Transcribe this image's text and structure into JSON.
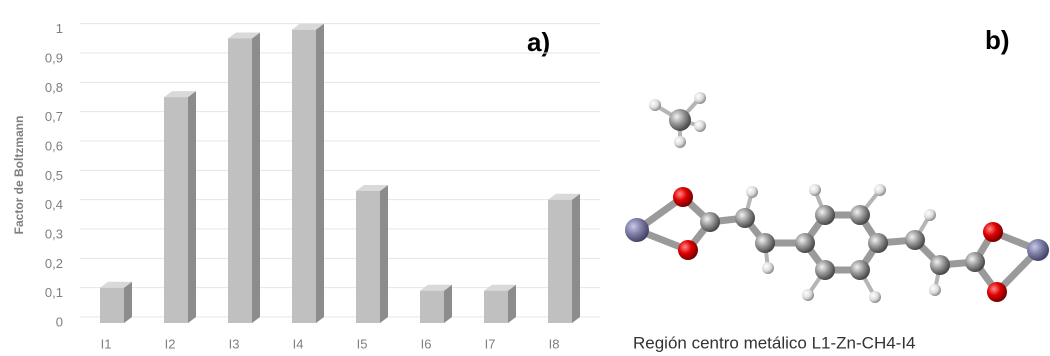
{
  "chart_data": {
    "type": "bar",
    "panel_label": "a)",
    "y_label": "Factor de Boltzmann",
    "categories": [
      "I1",
      "I2",
      "I3",
      "I4",
      "I5",
      "I6",
      "I7",
      "I8"
    ],
    "values": [
      0.12,
      0.77,
      0.97,
      1.0,
      0.45,
      0.11,
      0.11,
      0.42
    ],
    "color": "#c0c0c0",
    "ylim": [
      0,
      1.05
    ],
    "yticks": [
      0,
      {
        "value": 0.1,
        "label": "0,1"
      },
      {
        "value": 0.2,
        "label": "0,2"
      },
      {
        "value": 0.3,
        "label": "0,3"
      },
      {
        "value": 0.4,
        "label": "0,4"
      },
      {
        "value": 0.5,
        "label": "0,5"
      },
      {
        "value": 0.6,
        "label": "0,6"
      },
      {
        "value": 0.7,
        "label": "0,7"
      },
      {
        "value": 0.8,
        "label": "0,8"
      },
      {
        "value": 0.9,
        "label": "0,9"
      },
      1
    ],
    "grid": true
  },
  "figure_b": {
    "panel_label": "b)",
    "caption": "Región centro metálico L1-Zn-CH4-I4"
  }
}
